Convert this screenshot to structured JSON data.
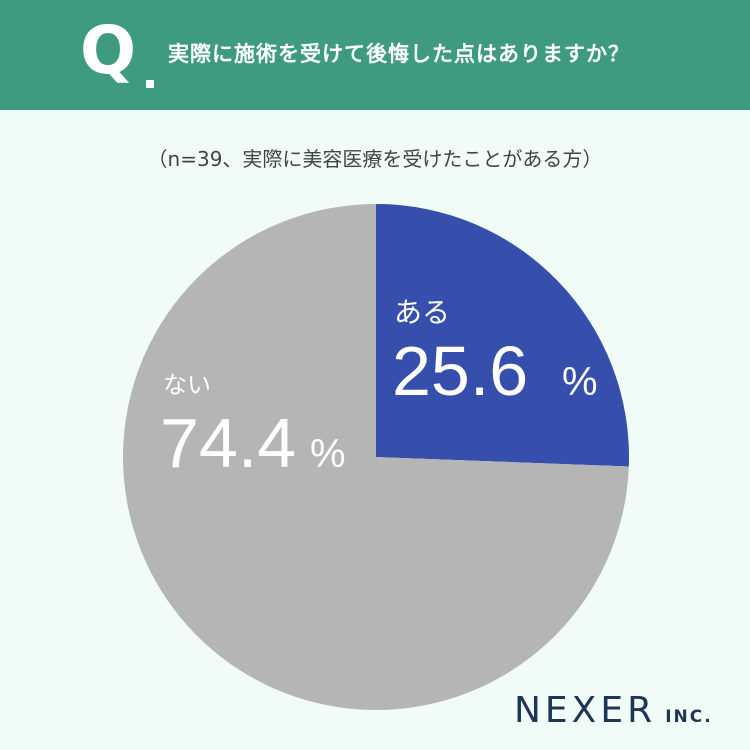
{
  "header": {
    "q_mark": "Q",
    "question": "実際に施術を受けて後悔した点はありますか？"
  },
  "note": "（n=39、実際に美容医療を受けたことがある方）",
  "chart_data": {
    "type": "pie",
    "slices": [
      {
        "label": "ある",
        "value": 25.6,
        "display": "25.6",
        "unit": "%",
        "color": "#364fad"
      },
      {
        "label": "ない",
        "value": 74.4,
        "display": "74.4",
        "unit": "%",
        "color": "#b5b5b5"
      }
    ]
  },
  "logo": {
    "main": "NEXER",
    "sub": "INC."
  }
}
